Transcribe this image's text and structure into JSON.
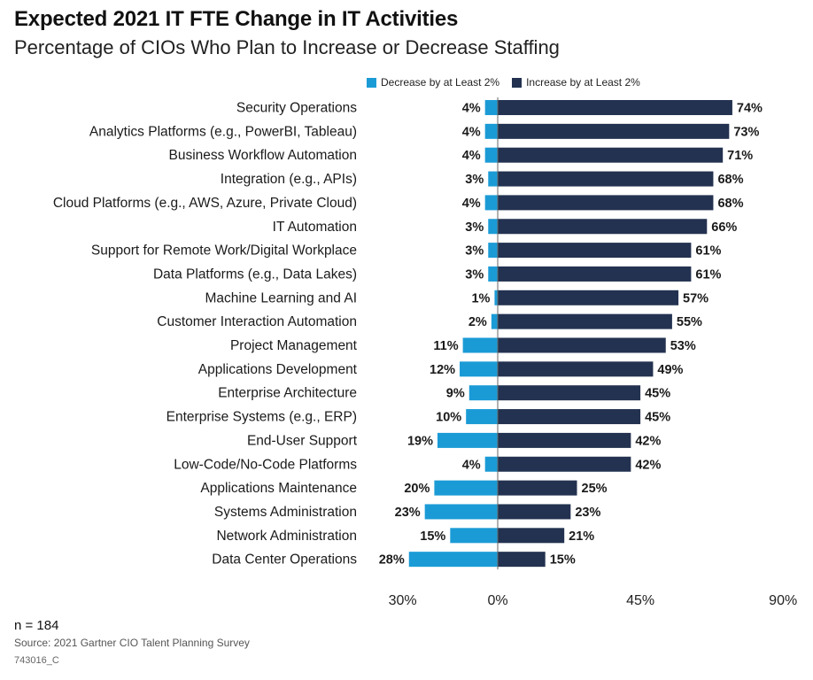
{
  "title": "Expected 2021 IT FTE Change in IT Activities",
  "subtitle": "Percentage of CIOs Who Plan to Increase or Decrease Staffing",
  "colors": {
    "decrease": "#1b9bd6",
    "increase": "#233250",
    "axis": "#666666"
  },
  "footer": {
    "n": "n = 184",
    "source": "Source: 2021 Gartner CIO Talent Planning Survey",
    "id": "743016_C"
  },
  "chart_data": {
    "type": "bar",
    "orientation": "horizontal-diverging",
    "categories": [
      "Security Operations",
      "Analytics Platforms (e.g., PowerBI, Tableau)",
      "Business Workflow Automation",
      "Integration (e.g., APIs)",
      "Cloud Platforms (e.g., AWS, Azure, Private Cloud)",
      "IT Automation",
      "Support for Remote Work/Digital Workplace",
      "Data Platforms (e.g., Data Lakes)",
      "Machine Learning and AI",
      "Customer Interaction Automation",
      "Project Management",
      "Applications Development",
      "Enterprise Architecture",
      "Enterprise Systems (e.g., ERP)",
      "End-User Support",
      "Low-Code/No-Code Platforms",
      "Applications Maintenance",
      "Systems Administration",
      "Network Administration",
      "Data Center Operations"
    ],
    "series": [
      {
        "name": "Decrease by at Least 2%",
        "values": [
          4,
          4,
          4,
          3,
          4,
          3,
          3,
          3,
          1,
          2,
          11,
          12,
          9,
          10,
          19,
          4,
          20,
          23,
          15,
          28
        ]
      },
      {
        "name": "Increase by at Least 2%",
        "values": [
          74,
          73,
          71,
          68,
          68,
          66,
          61,
          61,
          57,
          55,
          53,
          49,
          45,
          45,
          42,
          42,
          25,
          23,
          21,
          15
        ]
      }
    ],
    "value_suffix": "%",
    "xlim": [
      -30,
      90
    ],
    "xticks": [
      {
        "value": -30,
        "label": "30%"
      },
      {
        "value": 0,
        "label": "0%"
      },
      {
        "value": 45,
        "label": "45%"
      },
      {
        "value": 90,
        "label": "90%"
      }
    ],
    "legend": "top",
    "grid": false
  }
}
